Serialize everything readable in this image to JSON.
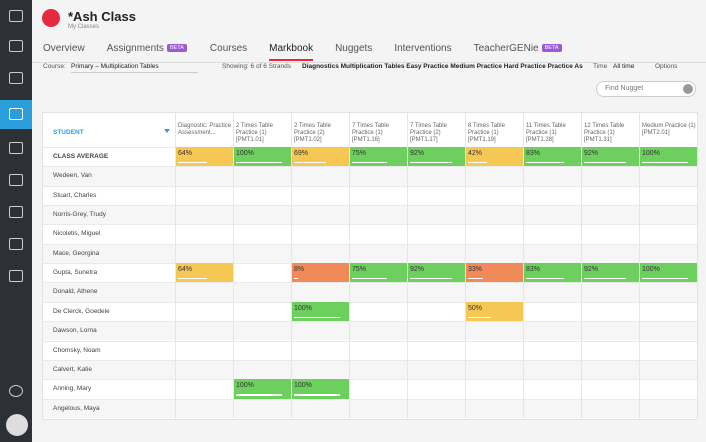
{
  "header": {
    "title": "*Ash Class",
    "subtitle": "My Classes"
  },
  "tabs": [
    {
      "label": "Overview"
    },
    {
      "label": "Assignments",
      "badge": "BETA"
    },
    {
      "label": "Courses"
    },
    {
      "label": "Markbook",
      "active": true
    },
    {
      "label": "Nuggets"
    },
    {
      "label": "Interventions"
    },
    {
      "label": "TeacherGENie",
      "badge": "BETA"
    }
  ],
  "filters": {
    "course_label": "Course:",
    "course": "Primary – Multiplication Tables",
    "showing": "Showing: 6 of 6 Strands",
    "strands": "Diagnostics Multiplication Tables Easy Practice Medium Practice Hard Practice Practice As",
    "time_label": "Time",
    "time": "All time",
    "options": "Options",
    "search_placeholder": "Find Nugget"
  },
  "table": {
    "student_header": "STUDENT",
    "columns": [
      "Diagnostic: Practice Assessment...",
      "2 Times Table Practice (1) [PMT1.01]",
      "2 Times Table Practice (2) [PMT1.02]",
      "7 Times Table Practice (1) [PMT1.16]",
      "7 Times Table Practice (2) [PMT1.17]",
      "8 Times Table Practice (1) [PMT1.19]",
      "11 Times Table Practice (1) [PMT1.28]",
      "12 Times Table Practice (1) [PMT1.31]",
      "Medium Practice (1) [PMT2.01]"
    ],
    "rows": [
      {
        "name": "CLASS AVERAGE",
        "cells": [
          {
            "text": "64%",
            "color": "#f5c755"
          },
          {
            "text": "100%",
            "color": "#6dcf5e"
          },
          {
            "text": "69%",
            "color": "#f5c755"
          },
          {
            "text": "75%",
            "color": "#6dcf5e"
          },
          {
            "text": "92%",
            "color": "#6dcf5e"
          },
          {
            "text": "42%",
            "color": "#f5c755"
          },
          {
            "text": "83%",
            "color": "#6dcf5e"
          },
          {
            "text": "92%",
            "color": "#6dcf5e"
          },
          {
            "text": "100%",
            "color": "#6dcf5e"
          }
        ]
      },
      {
        "name": "Wedeen, Van",
        "cells": [
          null,
          null,
          null,
          null,
          null,
          null,
          null,
          null,
          null
        ]
      },
      {
        "name": "Stuart, Charles",
        "cells": [
          null,
          null,
          null,
          null,
          null,
          null,
          null,
          null,
          null
        ]
      },
      {
        "name": "Norris-Grey, Trudy",
        "cells": [
          null,
          null,
          null,
          null,
          null,
          null,
          null,
          null,
          null
        ]
      },
      {
        "name": "Nicoletis, Miguel",
        "cells": [
          null,
          null,
          null,
          null,
          null,
          null,
          null,
          null,
          null
        ]
      },
      {
        "name": "Mace, Georgina",
        "cells": [
          null,
          null,
          null,
          null,
          null,
          null,
          null,
          null,
          null
        ]
      },
      {
        "name": "Gupta, Sunetra",
        "cells": [
          {
            "text": "64%",
            "color": "#f5c755"
          },
          null,
          {
            "text": "8%",
            "color": "#f08a58"
          },
          {
            "text": "75%",
            "color": "#6dcf5e"
          },
          {
            "text": "92%",
            "color": "#6dcf5e"
          },
          {
            "text": "33%",
            "color": "#f08a58"
          },
          {
            "text": "83%",
            "color": "#6dcf5e"
          },
          {
            "text": "92%",
            "color": "#6dcf5e"
          },
          {
            "text": "100%",
            "color": "#6dcf5e"
          }
        ]
      },
      {
        "name": "Donald, Athene",
        "cells": [
          null,
          null,
          null,
          null,
          null,
          null,
          null,
          null,
          null
        ]
      },
      {
        "name": "De Clerck, Goedele",
        "cells": [
          null,
          null,
          {
            "text": "100%",
            "color": "#6dcf5e"
          },
          null,
          null,
          {
            "text": "50%",
            "color": "#f5c755"
          },
          null,
          null,
          null
        ]
      },
      {
        "name": "Dawson, Lorna",
        "cells": [
          null,
          null,
          null,
          null,
          null,
          null,
          null,
          null,
          null
        ]
      },
      {
        "name": "Chomsky, Noam",
        "cells": [
          null,
          null,
          null,
          null,
          null,
          null,
          null,
          null,
          null
        ]
      },
      {
        "name": "Calvert, Katie",
        "cells": [
          null,
          null,
          null,
          null,
          null,
          null,
          null,
          null,
          null
        ]
      },
      {
        "name": "Anning, Mary",
        "cells": [
          null,
          {
            "text": "100%",
            "color": "#6dcf5e"
          },
          {
            "text": "100%",
            "color": "#6dcf5e"
          },
          null,
          null,
          null,
          null,
          null,
          null
        ]
      },
      {
        "name": "Angelous, Maya",
        "cells": [
          null,
          null,
          null,
          null,
          null,
          null,
          null,
          null,
          null
        ]
      }
    ]
  }
}
